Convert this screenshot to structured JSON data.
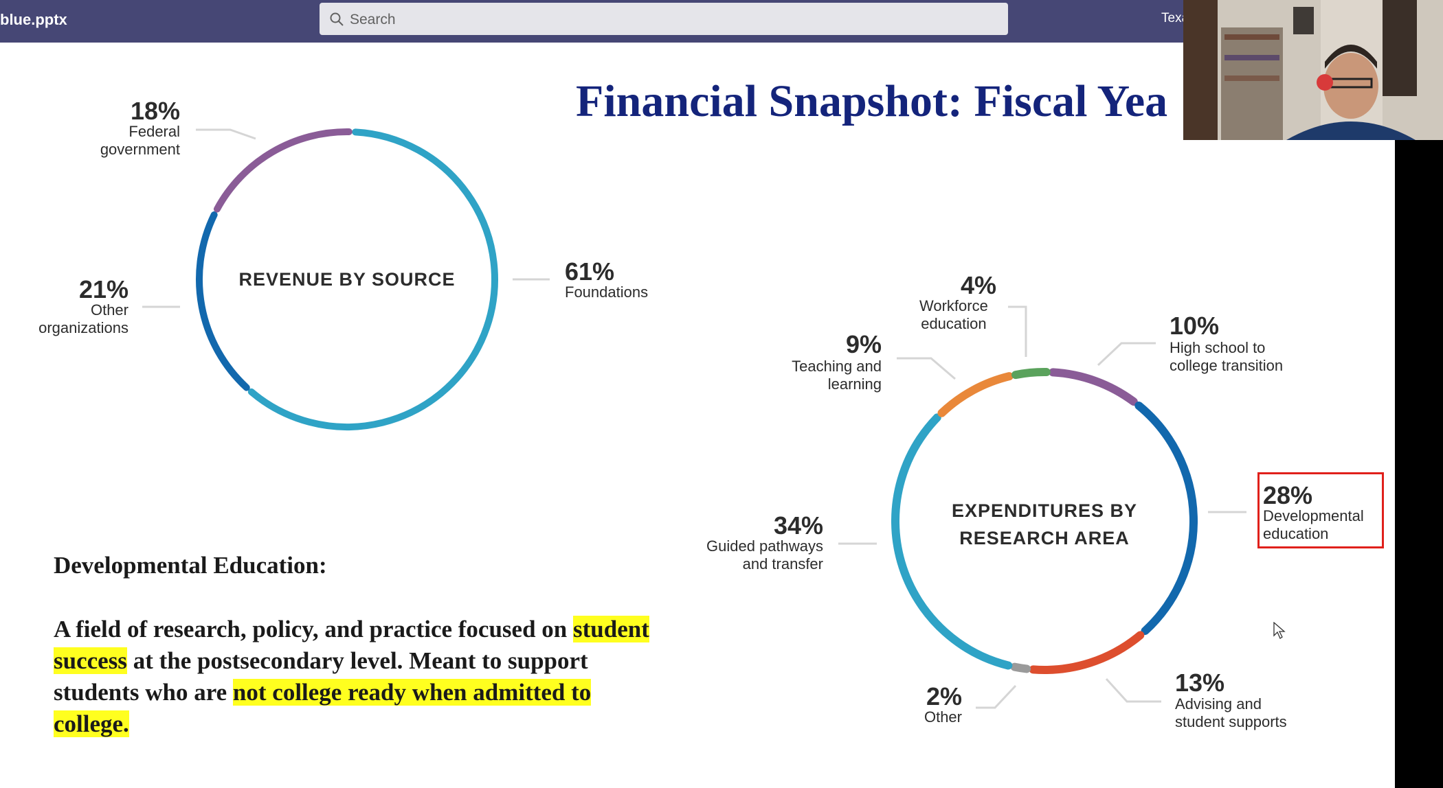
{
  "app": {
    "file_name": "blue.pptx",
    "search_placeholder": "Search",
    "org_name": "Texas Sta"
  },
  "slide": {
    "title": "Financial Snapshot: Fiscal Yea",
    "definition": {
      "heading": "Developmental Education:",
      "body_1": "A field of research, policy, and practice focused on ",
      "body_hl_1": "student success",
      "body_2": " at the postsecondary level. Meant to support students who are ",
      "body_hl_2": "not college ready when admitted to college."
    }
  },
  "chart_data": [
    {
      "type": "pie",
      "title": "REVENUE BY SOURCE",
      "categories": [
        "Foundations",
        "Other organizations",
        "Federal government"
      ],
      "values": [
        61,
        21,
        18
      ],
      "labels": [
        "61%",
        "21%",
        "18%"
      ],
      "colors": [
        "#2fa3c6",
        "#1268ad",
        "#8a5c97"
      ]
    },
    {
      "type": "pie",
      "title": "EXPENDITURES BY RESEARCH AREA",
      "categories": [
        "High school to college transition",
        "Developmental education",
        "Advising and student supports",
        "Other",
        "Guided pathways and transfer",
        "Teaching and learning",
        "Workforce education"
      ],
      "values": [
        10,
        28,
        13,
        2,
        34,
        9,
        4
      ],
      "labels": [
        "10%",
        "28%",
        "13%",
        "2%",
        "34%",
        "9%",
        "4%"
      ],
      "colors": [
        "#8a5c97",
        "#1268ad",
        "#dd4e2e",
        "#9a9a9a",
        "#2fa3c6",
        "#e9883a",
        "#5aa25c"
      ]
    }
  ],
  "donut_labels": {
    "rev": {
      "federal": {
        "pct": "18%",
        "label": "Federal\ngovernment"
      },
      "other": {
        "pct": "21%",
        "label": "Other\norganizations"
      },
      "foundations": {
        "pct": "61%",
        "label": "Foundations"
      },
      "center": "REVENUE BY SOURCE"
    },
    "exp": {
      "workforce": {
        "pct": "4%",
        "label": "Workforce\neducation"
      },
      "teaching": {
        "pct": "9%",
        "label": "Teaching and\nlearning"
      },
      "highschool": {
        "pct": "10%",
        "label": "High school to\ncollege transition"
      },
      "dev": {
        "pct": "28%",
        "label": "Developmental\neducation"
      },
      "guided": {
        "pct": "34%",
        "label": "Guided pathways\nand transfer"
      },
      "advising": {
        "pct": "13%",
        "label": "Advising and\nstudent supports"
      },
      "other": {
        "pct": "2%",
        "label": "Other"
      },
      "center_1": "EXPENDITURES BY",
      "center_2": "RESEARCH AREA"
    }
  },
  "colors": {
    "topbar": "#464775",
    "title": "#14247b",
    "highlight": "#ffff1f",
    "red_box": "#e0201b"
  }
}
